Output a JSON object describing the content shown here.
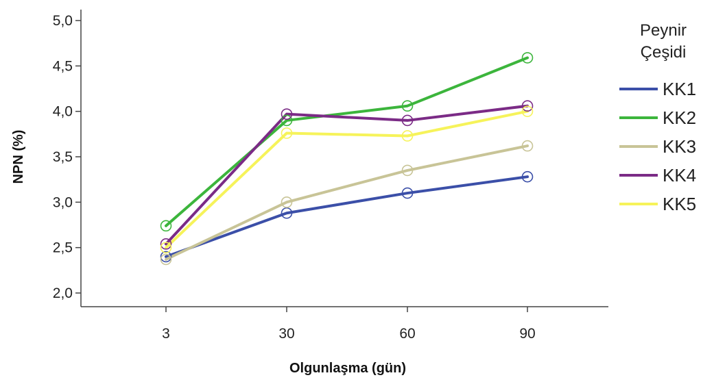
{
  "chart_data": {
    "type": "line",
    "xlabel": "Olgunlaşma (gün)",
    "ylabel": "NPN (%)",
    "categories": [
      "3",
      "30",
      "60",
      "90"
    ],
    "yticks": [
      "2,0",
      "2,5",
      "3,0",
      "3,5",
      "4,0",
      "4,5",
      "5,0"
    ],
    "ylim": [
      2.0,
      5.0
    ],
    "grid": false,
    "markers": "open-circle",
    "legend": {
      "title_lines": [
        "Peynir",
        "Çeşidi"
      ],
      "placement": "right"
    },
    "series": [
      {
        "name": "KK1",
        "color": "#3b4fa8",
        "values": [
          2.4,
          2.88,
          3.1,
          3.28
        ]
      },
      {
        "name": "KK2",
        "color": "#3cb53c",
        "values": [
          2.74,
          3.9,
          4.06,
          4.59
        ]
      },
      {
        "name": "KK3",
        "color": "#c8c497",
        "values": [
          2.37,
          3.0,
          3.35,
          3.62
        ]
      },
      {
        "name": "KK4",
        "color": "#7b2b86",
        "values": [
          2.54,
          3.97,
          3.9,
          4.06
        ]
      },
      {
        "name": "KK5",
        "color": "#f6f35a",
        "values": [
          2.5,
          3.76,
          3.73,
          4.0
        ]
      }
    ]
  }
}
